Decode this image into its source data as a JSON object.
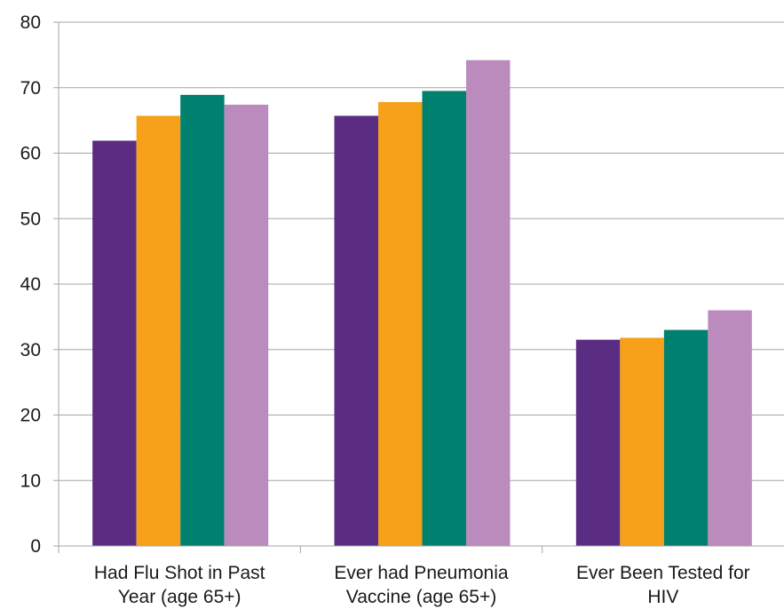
{
  "chart_data": {
    "type": "bar",
    "title": "",
    "xlabel": "",
    "ylabel": "",
    "ylim": [
      0,
      80
    ],
    "y_ticks": [
      0,
      10,
      20,
      30,
      40,
      50,
      60,
      70,
      80
    ],
    "grid": true,
    "legend": "none",
    "categories": [
      [
        "Had Flu Shot in Past",
        "Year (age 65+)"
      ],
      [
        "Ever had Pneumonia",
        "Vaccine (age 65+)"
      ],
      [
        "Ever Been Tested for",
        "HIV"
      ]
    ],
    "series": [
      {
        "color": "#5a2d82",
        "values": [
          61.9,
          65.7,
          31.5
        ]
      },
      {
        "color": "#f7a11a",
        "values": [
          65.7,
          67.8,
          31.8
        ]
      },
      {
        "color": "#00806f",
        "values": [
          68.9,
          69.5,
          33.0
        ]
      },
      {
        "color": "#bc8bbd",
        "values": [
          67.4,
          74.2,
          36.0
        ]
      }
    ]
  }
}
